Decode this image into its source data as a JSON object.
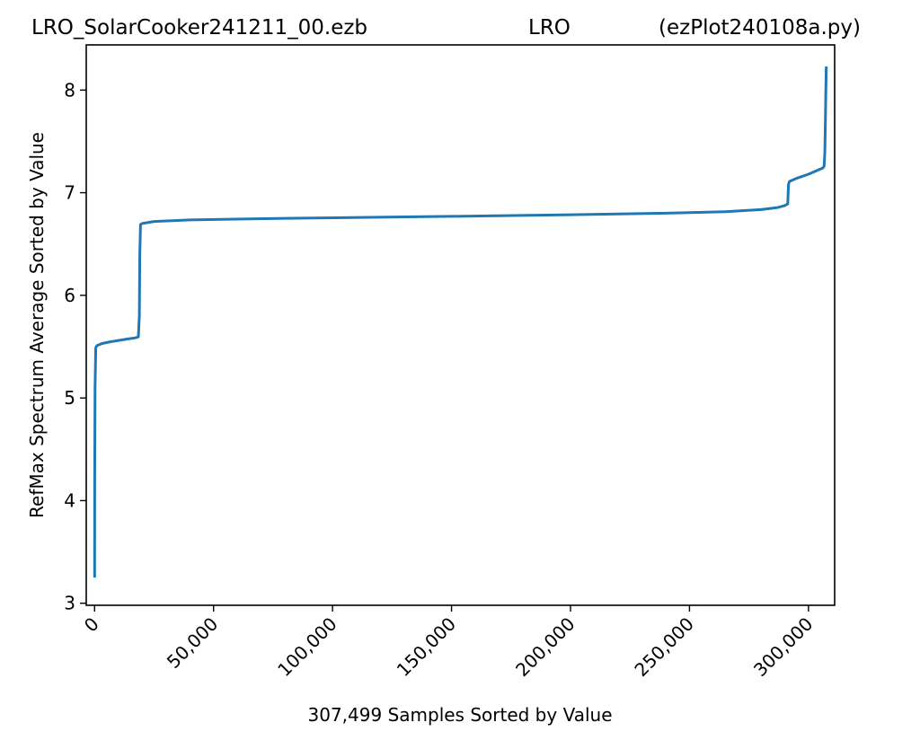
{
  "title_parts": [
    "LRO_SolarCooker241211_00.ezb",
    "LRO",
    "(ezPlot240108a.py)"
  ],
  "chart_data": {
    "type": "line",
    "xlabel": "307,499 Samples Sorted by Value",
    "ylabel": "RefMax Spectrum Average Sorted by Value",
    "xlim": [
      -3500,
      311000
    ],
    "ylim": [
      2.98,
      8.44
    ],
    "x_ticks": [
      {
        "value": 0,
        "label": "0"
      },
      {
        "value": 50000,
        "label": "50,000"
      },
      {
        "value": 100000,
        "label": "100,000"
      },
      {
        "value": 150000,
        "label": "150,000"
      },
      {
        "value": 200000,
        "label": "200,000"
      },
      {
        "value": 250000,
        "label": "250,000"
      },
      {
        "value": 300000,
        "label": "300,000"
      }
    ],
    "y_ticks": [
      {
        "value": 3,
        "label": "3"
      },
      {
        "value": 4,
        "label": "4"
      },
      {
        "value": 5,
        "label": "5"
      },
      {
        "value": 6,
        "label": "6"
      },
      {
        "value": 7,
        "label": "7"
      },
      {
        "value": 8,
        "label": "8"
      }
    ],
    "grid": false,
    "series": [
      {
        "color": "#1f77b4",
        "x": [
          0,
          50,
          200,
          500,
          1000,
          3000,
          6000,
          10000,
          14000,
          17000,
          18400,
          18800,
          19000,
          19300,
          20000,
          25000,
          40000,
          80000,
          150000,
          200000,
          240000,
          265000,
          280000,
          287000,
          290000,
          291300,
          291600,
          292000,
          295000,
          300000,
          304000,
          306000,
          306600,
          306900,
          307100,
          307300,
          307499
        ],
        "y": [
          3.25,
          4.2,
          5.1,
          5.49,
          5.51,
          5.53,
          5.545,
          5.56,
          5.575,
          5.585,
          5.595,
          5.8,
          6.4,
          6.69,
          6.7,
          6.72,
          6.735,
          6.75,
          6.77,
          6.785,
          6.8,
          6.815,
          6.835,
          6.855,
          6.875,
          6.89,
          7.08,
          7.11,
          7.14,
          7.18,
          7.22,
          7.24,
          7.26,
          7.4,
          7.7,
          8.0,
          8.23
        ]
      }
    ]
  }
}
